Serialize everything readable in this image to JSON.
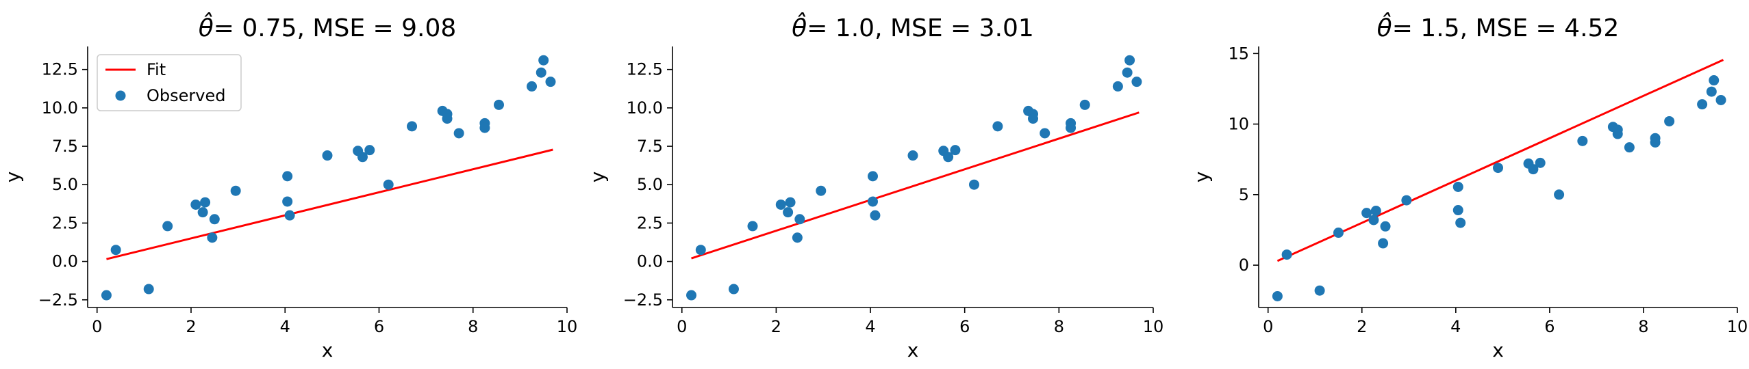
{
  "chart_data": [
    {
      "type": "scatter",
      "title_symbol": "θ̂",
      "title_rest": "= 0.75, MSE = 9.08",
      "xlabel": "x",
      "ylabel": "y",
      "xlim": [
        -0.2,
        10.0
      ],
      "ylim": [
        -3.0,
        14.0
      ],
      "xticks": [
        0,
        2,
        4,
        6,
        8,
        10
      ],
      "xtick_labels": [
        "0",
        "2",
        "4",
        "6",
        "8",
        "10"
      ],
      "yticks": [
        -2.5,
        0.0,
        2.5,
        5.0,
        7.5,
        10.0,
        12.5
      ],
      "ytick_labels": [
        "−2.5",
        "0.0",
        "2.5",
        "5.0",
        "7.5",
        "10.0",
        "12.5"
      ],
      "legend": {
        "placement": "top-left",
        "entries": [
          "Fit",
          "Observed"
        ]
      },
      "fit_line": {
        "x": [
          0.2,
          9.7
        ],
        "y": [
          0.15,
          7.28
        ],
        "color": "#ff0000"
      },
      "series": [
        {
          "name": "Observed",
          "color": "#1f77b4"
        }
      ]
    },
    {
      "type": "scatter",
      "title_symbol": "θ̂",
      "title_rest": "= 1.0, MSE = 3.01",
      "xlabel": "x",
      "ylabel": "y",
      "xlim": [
        -0.2,
        10.0
      ],
      "ylim": [
        -3.0,
        14.0
      ],
      "xticks": [
        0,
        2,
        4,
        6,
        8,
        10
      ],
      "xtick_labels": [
        "0",
        "2",
        "4",
        "6",
        "8",
        "10"
      ],
      "yticks": [
        -2.5,
        0.0,
        2.5,
        5.0,
        7.5,
        10.0,
        12.5
      ],
      "ytick_labels": [
        "−2.5",
        "0.0",
        "2.5",
        "5.0",
        "7.5",
        "10.0",
        "12.5"
      ],
      "fit_line": {
        "x": [
          0.2,
          9.7
        ],
        "y": [
          0.2,
          9.7
        ],
        "color": "#ff0000"
      },
      "series": [
        {
          "name": "Observed",
          "color": "#1f77b4"
        }
      ]
    },
    {
      "type": "scatter",
      "title_symbol": "θ̂",
      "title_rest": "= 1.5, MSE = 4.52",
      "xlabel": "x",
      "ylabel": "y",
      "xlim": [
        -0.2,
        10.0
      ],
      "ylim": [
        -3.0,
        15.5
      ],
      "xticks": [
        0,
        2,
        4,
        6,
        8,
        10
      ],
      "xtick_labels": [
        "0",
        "2",
        "4",
        "6",
        "8",
        "10"
      ],
      "yticks": [
        0,
        5,
        10,
        15
      ],
      "ytick_labels": [
        "0",
        "5",
        "10",
        "15"
      ],
      "fit_line": {
        "x": [
          0.2,
          9.7
        ],
        "y": [
          0.3,
          14.55
        ],
        "color": "#ff0000"
      },
      "series": [
        {
          "name": "Observed",
          "color": "#1f77b4"
        }
      ]
    }
  ],
  "observed_points": {
    "x": [
      0.2,
      0.4,
      1.1,
      1.5,
      2.1,
      2.25,
      2.3,
      2.45,
      2.5,
      2.95,
      4.05,
      4.05,
      4.1,
      4.9,
      5.55,
      5.65,
      5.8,
      6.2,
      6.7,
      7.35,
      7.45,
      7.45,
      7.7,
      8.25,
      8.25,
      8.55,
      9.25,
      9.45,
      9.5,
      9.65
    ],
    "y": [
      -2.2,
      0.75,
      -1.8,
      2.3,
      3.7,
      3.2,
      3.85,
      1.55,
      2.75,
      4.6,
      5.55,
      3.9,
      3.0,
      6.9,
      7.2,
      6.8,
      7.25,
      5.0,
      8.8,
      9.8,
      9.6,
      9.3,
      8.35,
      9.0,
      8.7,
      10.2,
      11.4,
      12.3,
      13.1,
      11.7
    ]
  }
}
